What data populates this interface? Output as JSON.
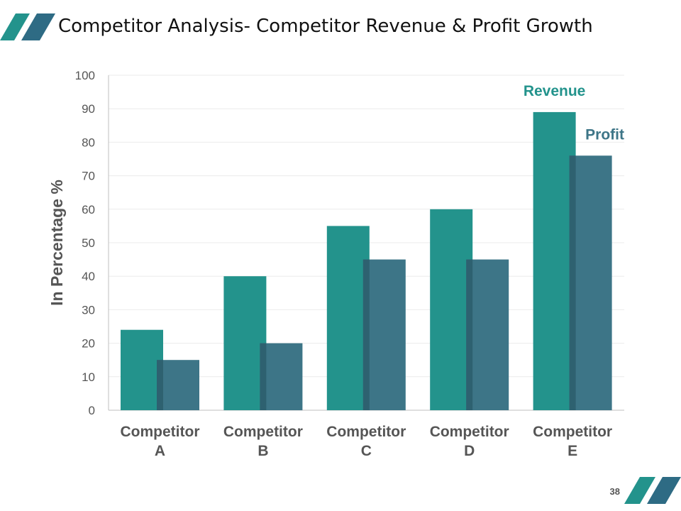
{
  "slide": {
    "title": "Competitor Analysis- Competitor Revenue & Profit Growth",
    "page_number": "38"
  },
  "colors": {
    "revenue": "#23938C",
    "profit": "#3D7587",
    "profit_shade": "#2E6170",
    "grid": "#EBEBEB",
    "axis": "#BFBFBF",
    "logo_light": "#23938C",
    "logo_dark": "#2E6B84"
  },
  "chart_data": {
    "type": "bar",
    "title": "",
    "xlabel": "",
    "ylabel": "In Percentage %",
    "ylim": [
      0,
      100
    ],
    "yticks": [
      0,
      10,
      20,
      30,
      40,
      50,
      60,
      70,
      80,
      90,
      100
    ],
    "categories": [
      [
        "Competitor",
        "A"
      ],
      [
        "Competitor",
        "B"
      ],
      [
        "Competitor",
        "C"
      ],
      [
        "Competitor",
        "D"
      ],
      [
        "Competitor",
        "E"
      ]
    ],
    "series": [
      {
        "name": "Revenue",
        "values": [
          24,
          40,
          55,
          60,
          89
        ]
      },
      {
        "name": "Profit",
        "values": [
          15,
          20,
          45,
          45,
          76
        ]
      }
    ],
    "grid": true,
    "legend": "series labels placed above the Competitor E bars"
  }
}
